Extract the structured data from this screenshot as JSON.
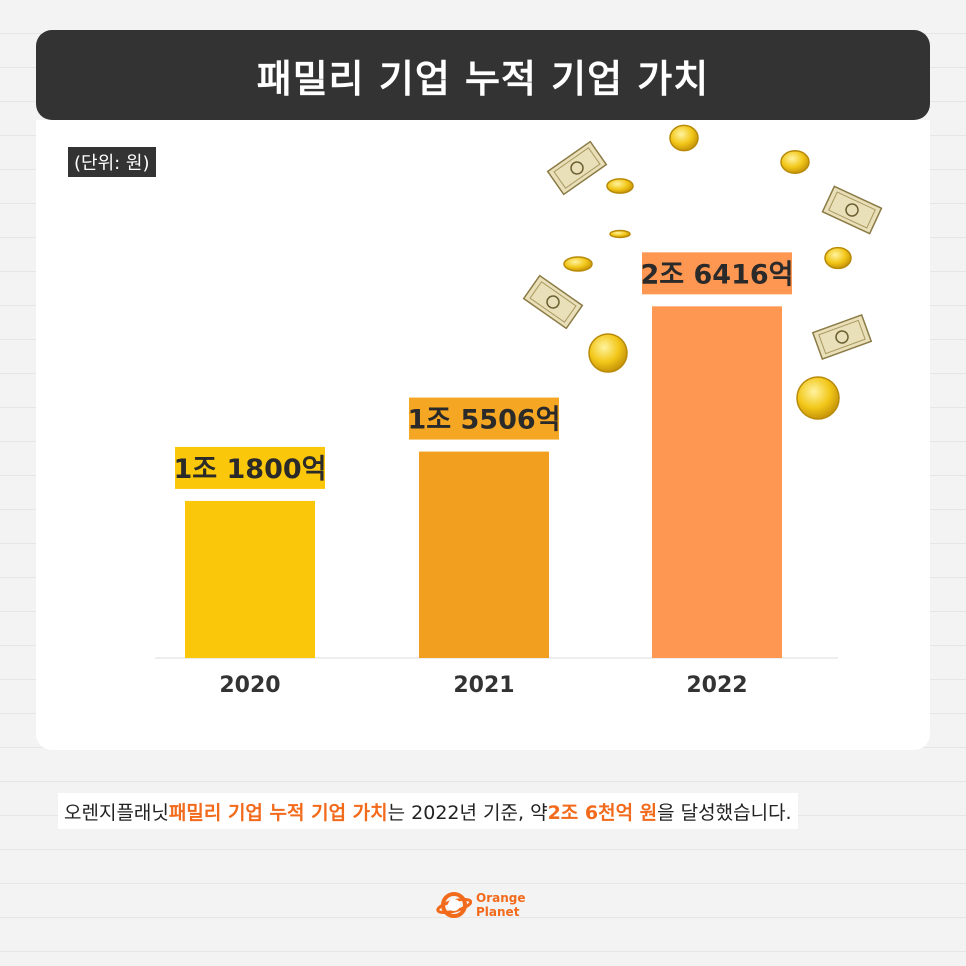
{
  "header": {
    "title": "패밀리 기업 누적 기업 가치"
  },
  "unit_label": "(단위: 원)",
  "chart_data": {
    "type": "bar",
    "title": "패밀리 기업 누적 기업 가치",
    "categories": [
      "2020",
      "2021",
      "2022"
    ],
    "values": [
      11800,
      15506,
      26416
    ],
    "value_labels": [
      "1조 1800억",
      "1조 5506억",
      "2조 6416억"
    ],
    "unit": "억 원",
    "bar_colors": [
      "#fbc70a",
      "#f29f1f",
      "#fd9752"
    ],
    "label_bg_colors": [
      "#fbc70a",
      "#f5a623",
      "#fd9752"
    ],
    "ylim": [
      0,
      32000
    ],
    "grid": false,
    "legend": "none"
  },
  "caption": {
    "part1": "오렌지플래닛 ",
    "highlight1": "패밀리 기업 누적 기업 가치",
    "part2": "는 2022년 기준, 약 ",
    "highlight2": "2조 6천억 원",
    "part3": "을 달성했습니다."
  },
  "logo": {
    "line1": "Orange",
    "line2": "Planet"
  },
  "colors": {
    "accent": "#f26a1b",
    "dark": "#333333",
    "card": "#ffffff"
  },
  "decorations": [
    "coin-icon",
    "banknote-icon"
  ]
}
